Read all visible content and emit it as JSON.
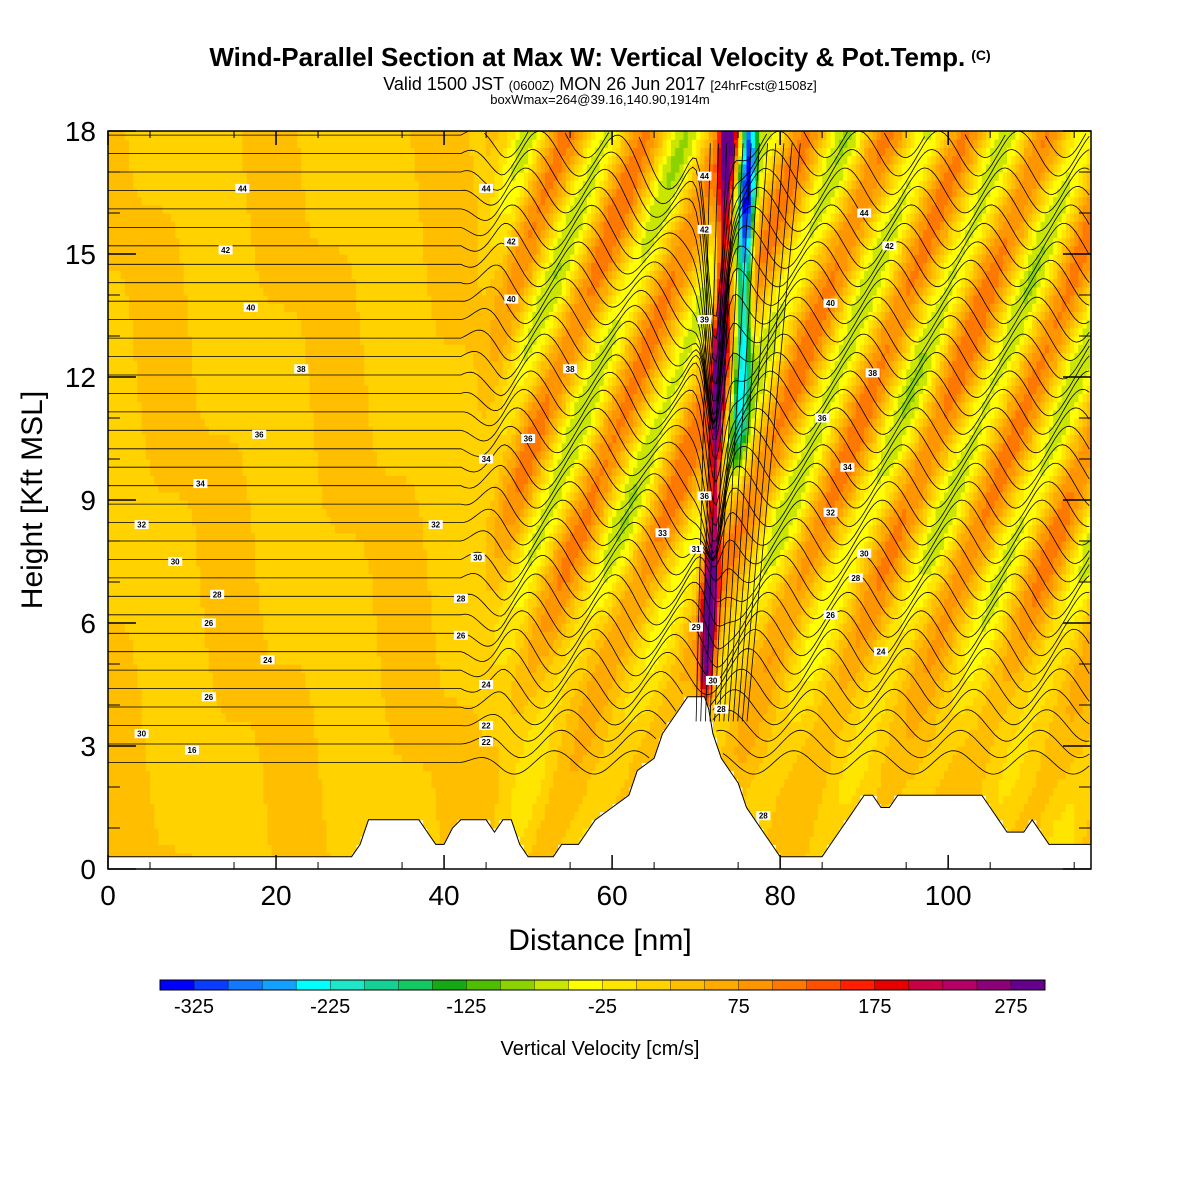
{
  "title": "Wind-Parallel Section at Max W: Vertical Velocity & Pot.Temp.",
  "title_tag": "(C)",
  "valid_prefix": "Valid 1500 JST",
  "valid_zone": "(0600Z)",
  "valid_date": "MON 26 Jun 2017",
  "forecast_tag": "[24hrFcst@1508z]",
  "box_info": "boxWmax=264@39.16,140.90,1914m",
  "chart_data": {
    "type": "heatmap",
    "xlabel": "Distance [nm]",
    "ylabel": "Height [Kft MSL]",
    "xlim": [
      0,
      117
    ],
    "ylim": [
      0,
      18
    ],
    "x_ticks": [
      0,
      20,
      40,
      60,
      80,
      100
    ],
    "y_ticks": [
      0,
      3,
      6,
      9,
      12,
      15,
      18
    ],
    "colorbar": {
      "label": "Vertical Velocity [cm/s]",
      "min": -350,
      "max": 300,
      "step": 25,
      "tick_labels": [
        "-325",
        "-225",
        "-125",
        "-25",
        "75",
        "175",
        "275"
      ],
      "colors": [
        "#0000ff",
        "#0a3cff",
        "#1478ff",
        "#14a0ff",
        "#00ffff",
        "#1ee6c8",
        "#14d296",
        "#14c864",
        "#14aa14",
        "#50be00",
        "#8cd200",
        "#c8e600",
        "#ffff00",
        "#ffe600",
        "#ffd200",
        "#ffbe00",
        "#ffaa00",
        "#ff9600",
        "#ff7800",
        "#ff5000",
        "#ff1e00",
        "#e60000",
        "#c80046",
        "#b40064",
        "#8c0078",
        "#64008c"
      ]
    },
    "updraft_core": {
      "x": 71.5,
      "w_max": 264
    },
    "downdraft_core": {
      "x": 74.5,
      "w_min": -300
    },
    "theta_contour_labels": [
      {
        "x": 16,
        "y": 16.6,
        "text": "44"
      },
      {
        "x": 14,
        "y": 15.1,
        "text": "42"
      },
      {
        "x": 17,
        "y": 13.7,
        "text": "40"
      },
      {
        "x": 23,
        "y": 12.2,
        "text": "38"
      },
      {
        "x": 18,
        "y": 10.6,
        "text": "36"
      },
      {
        "x": 11,
        "y": 9.4,
        "text": "34"
      },
      {
        "x": 4,
        "y": 8.4,
        "text": "32"
      },
      {
        "x": 8,
        "y": 7.5,
        "text": "30"
      },
      {
        "x": 13,
        "y": 6.7,
        "text": "28"
      },
      {
        "x": 12,
        "y": 6.0,
        "text": "26"
      },
      {
        "x": 19,
        "y": 5.1,
        "text": "24"
      },
      {
        "x": 12,
        "y": 4.2,
        "text": "26"
      },
      {
        "x": 4,
        "y": 3.3,
        "text": "30"
      },
      {
        "x": 10,
        "y": 2.9,
        "text": "16"
      },
      {
        "x": 45,
        "y": 16.6,
        "text": "44"
      },
      {
        "x": 48,
        "y": 15.3,
        "text": "42"
      },
      {
        "x": 48,
        "y": 13.9,
        "text": "40"
      },
      {
        "x": 55,
        "y": 12.2,
        "text": "38"
      },
      {
        "x": 50,
        "y": 10.5,
        "text": "36"
      },
      {
        "x": 45,
        "y": 10.0,
        "text": "34"
      },
      {
        "x": 39,
        "y": 8.4,
        "text": "32"
      },
      {
        "x": 44,
        "y": 7.6,
        "text": "30"
      },
      {
        "x": 42,
        "y": 6.6,
        "text": "28"
      },
      {
        "x": 42,
        "y": 5.7,
        "text": "26"
      },
      {
        "x": 45,
        "y": 4.5,
        "text": "24"
      },
      {
        "x": 45,
        "y": 3.5,
        "text": "22"
      },
      {
        "x": 45,
        "y": 3.1,
        "text": "22"
      },
      {
        "x": 71,
        "y": 16.9,
        "text": "44"
      },
      {
        "x": 71,
        "y": 15.6,
        "text": "42"
      },
      {
        "x": 71,
        "y": 13.4,
        "text": "39"
      },
      {
        "x": 71,
        "y": 9.1,
        "text": "36"
      },
      {
        "x": 66,
        "y": 8.2,
        "text": "33"
      },
      {
        "x": 70,
        "y": 7.8,
        "text": "31"
      },
      {
        "x": 70,
        "y": 5.9,
        "text": "29"
      },
      {
        "x": 72,
        "y": 4.6,
        "text": "30"
      },
      {
        "x": 73,
        "y": 3.9,
        "text": "28"
      },
      {
        "x": 90,
        "y": 16.0,
        "text": "44"
      },
      {
        "x": 93,
        "y": 15.2,
        "text": "42"
      },
      {
        "x": 86,
        "y": 13.8,
        "text": "40"
      },
      {
        "x": 91,
        "y": 12.1,
        "text": "38"
      },
      {
        "x": 85,
        "y": 11.0,
        "text": "36"
      },
      {
        "x": 88,
        "y": 9.8,
        "text": "34"
      },
      {
        "x": 86,
        "y": 8.7,
        "text": "32"
      },
      {
        "x": 90,
        "y": 7.7,
        "text": "30"
      },
      {
        "x": 89,
        "y": 7.1,
        "text": "28"
      },
      {
        "x": 86,
        "y": 6.2,
        "text": "26"
      },
      {
        "x": 92,
        "y": 5.3,
        "text": "24"
      },
      {
        "x": 78,
        "y": 1.3,
        "text": "28"
      }
    ]
  }
}
